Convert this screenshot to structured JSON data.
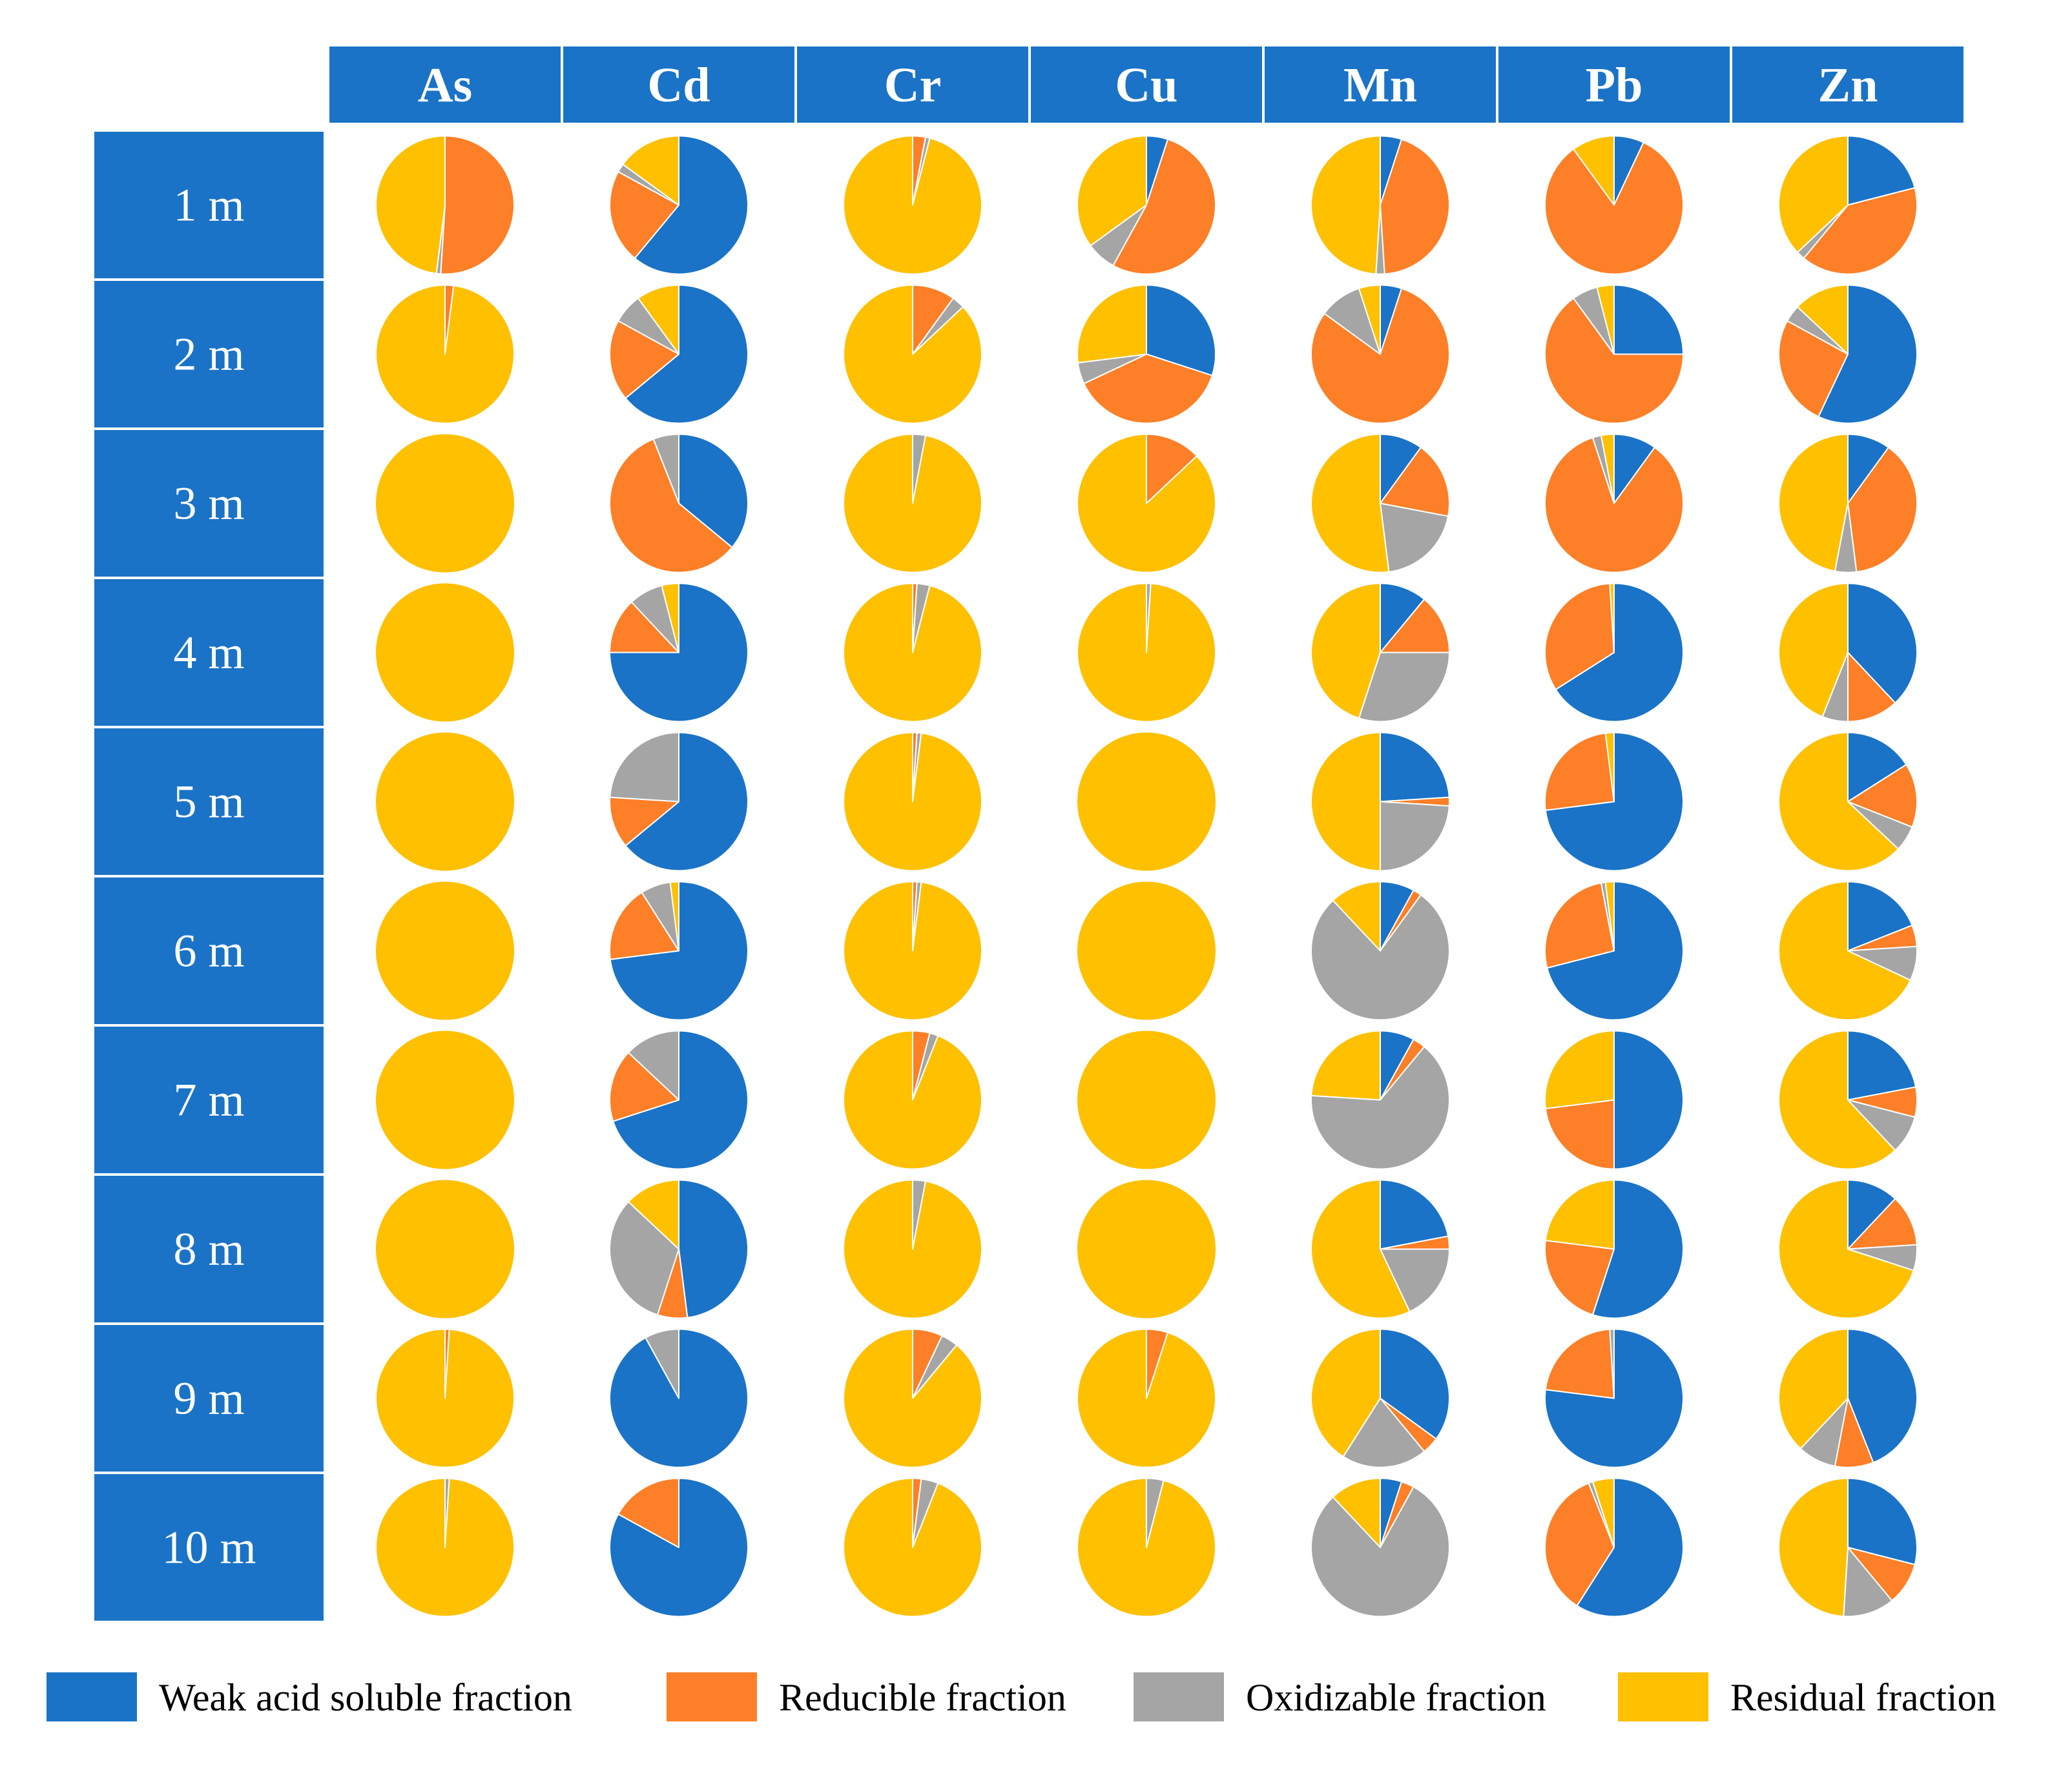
{
  "chart_data": {
    "type": "pie",
    "layout": "grid",
    "columns": [
      "As",
      "Cd",
      "Cr",
      "Cu",
      "Mn",
      "Pb",
      "Zn"
    ],
    "rows": [
      "1 m",
      "2 m",
      "3 m",
      "4 m",
      "5 m",
      "6 m",
      "7 m",
      "8 m",
      "9 m",
      "10 m"
    ],
    "fractions": [
      {
        "name": "Weak acid soluble fraction",
        "color": "#1a73c6"
      },
      {
        "name": "Reducible fraction",
        "color": "#fd7f27"
      },
      {
        "name": "Oxidizable fraction",
        "color": "#a5a5a5"
      },
      {
        "name": "Residual fraction",
        "color": "#ffc000"
      }
    ],
    "values_unit": "percent of total",
    "values": [
      [
        [
          0,
          51,
          1,
          48
        ],
        [
          61,
          22,
          2,
          15
        ],
        [
          0,
          3,
          1,
          96
        ],
        [
          5,
          53,
          7,
          35
        ],
        [
          5,
          44,
          2,
          49
        ],
        [
          7,
          83,
          0,
          10
        ],
        [
          21,
          40,
          2,
          37
        ]
      ],
      [
        [
          0,
          2,
          0,
          98
        ],
        [
          64,
          19,
          7,
          10
        ],
        [
          0,
          10,
          3,
          87
        ],
        [
          30,
          38,
          5,
          27
        ],
        [
          5,
          80,
          10,
          5
        ],
        [
          25,
          65,
          6,
          4
        ],
        [
          57,
          26,
          4,
          13
        ]
      ],
      [
        [
          0,
          0,
          0,
          100
        ],
        [
          36,
          58,
          6,
          0
        ],
        [
          0,
          0,
          3,
          97
        ],
        [
          0,
          13,
          0,
          87
        ],
        [
          10,
          18,
          20,
          52
        ],
        [
          10,
          85,
          2,
          3
        ],
        [
          10,
          38,
          5,
          47
        ]
      ],
      [
        [
          0,
          0,
          0,
          100
        ],
        [
          75,
          13,
          8,
          4
        ],
        [
          0,
          1,
          3,
          96
        ],
        [
          0,
          0,
          1,
          99
        ],
        [
          11,
          14,
          30,
          45
        ],
        [
          66,
          33,
          0,
          1
        ],
        [
          38,
          12,
          6,
          44
        ]
      ],
      [
        [
          0,
          0,
          0,
          100
        ],
        [
          64,
          12,
          24,
          0
        ],
        [
          0,
          1,
          1,
          98
        ],
        [
          0,
          0,
          0,
          100
        ],
        [
          24,
          2,
          24,
          50
        ],
        [
          73,
          25,
          0,
          2
        ],
        [
          16,
          15,
          6,
          63
        ]
      ],
      [
        [
          0,
          0,
          0,
          100
        ],
        [
          73,
          18,
          7,
          2
        ],
        [
          0,
          1,
          1,
          98
        ],
        [
          0,
          0,
          0,
          100
        ],
        [
          8,
          2,
          78,
          12
        ],
        [
          71,
          26,
          1,
          2
        ],
        [
          19,
          5,
          8,
          68
        ]
      ],
      [
        [
          0,
          0,
          0,
          100
        ],
        [
          70,
          17,
          13,
          0
        ],
        [
          0,
          4,
          2,
          94
        ],
        [
          0,
          0,
          0,
          100
        ],
        [
          8,
          3,
          65,
          24
        ],
        [
          50,
          23,
          0,
          27
        ],
        [
          22,
          7,
          9,
          62
        ]
      ],
      [
        [
          0,
          0,
          0,
          100
        ],
        [
          48,
          7,
          32,
          13
        ],
        [
          0,
          0,
          3,
          97
        ],
        [
          0,
          0,
          0,
          100
        ],
        [
          22,
          3,
          18,
          57
        ],
        [
          55,
          22,
          0,
          23
        ],
        [
          12,
          12,
          6,
          70
        ]
      ],
      [
        [
          0,
          1,
          0,
          99
        ],
        [
          92,
          0,
          8,
          0
        ],
        [
          0,
          7,
          4,
          89
        ],
        [
          0,
          5,
          0,
          95
        ],
        [
          35,
          4,
          20,
          41
        ],
        [
          77,
          22,
          1,
          0
        ],
        [
          44,
          9,
          9,
          38
        ]
      ],
      [
        [
          0,
          0,
          1,
          99
        ],
        [
          83,
          17,
          0,
          0
        ],
        [
          0,
          2,
          4,
          94
        ],
        [
          0,
          0,
          4,
          96
        ],
        [
          5,
          3,
          80,
          12
        ],
        [
          59,
          35,
          1,
          5
        ],
        [
          29,
          10,
          12,
          49
        ]
      ]
    ]
  }
}
